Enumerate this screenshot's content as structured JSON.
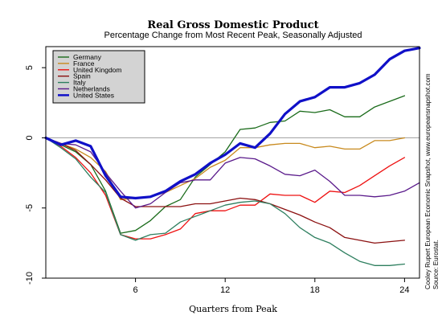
{
  "chart_data": {
    "type": "line",
    "title": "Real Gross Domestic Product",
    "subtitle": "Percentage Change from Most Recent Peak, Seasonally Adjusted",
    "xlabel": "Quarters from Peak",
    "ylabel": "",
    "xlim": [
      0,
      25
    ],
    "ylim": [
      -10,
      6.5
    ],
    "xticks": [
      6,
      12,
      18,
      24
    ],
    "yticks": [
      -10,
      -5,
      0,
      5
    ],
    "reference_line": 0,
    "legend_position": "top-left",
    "source": {
      "line1": "Cooley Rupert European Economic Snapshot, www.europeansnapshot.com",
      "line2": "Source: Eurostat."
    },
    "x": [
      0,
      1,
      2,
      3,
      4,
      5,
      6,
      7,
      8,
      9,
      10,
      11,
      12,
      13,
      14,
      15,
      16,
      17,
      18,
      19,
      20,
      21,
      22,
      23,
      24,
      25
    ],
    "series": [
      {
        "name": "Germany",
        "color": "#1a6b1a",
        "width": 1.3,
        "values": [
          0,
          -0.5,
          -1.0,
          -1.9,
          -3.8,
          -6.8,
          -6.6,
          -5.9,
          -4.9,
          -4.4,
          -2.8,
          -1.9,
          -1.0,
          0.6,
          0.7,
          1.1,
          1.2,
          1.9,
          1.8,
          2.0,
          1.5,
          1.5,
          2.2,
          2.6,
          3.0,
          null
        ]
      },
      {
        "name": "France",
        "color": "#c88a1e",
        "width": 1.3,
        "values": [
          0,
          -0.4,
          -0.8,
          -1.4,
          -2.4,
          -4.4,
          -4.3,
          -4.2,
          -3.9,
          -3.4,
          -2.9,
          -2.1,
          -1.6,
          -0.7,
          -0.7,
          -0.5,
          -0.4,
          -0.4,
          -0.7,
          -0.6,
          -0.8,
          -0.8,
          -0.2,
          -0.2,
          0.0,
          null
        ]
      },
      {
        "name": "United Kingdom",
        "color": "#ee1111",
        "width": 1.3,
        "values": [
          0,
          -0.6,
          -1.4,
          -2.5,
          -4.1,
          -6.9,
          -7.2,
          -7.2,
          -6.9,
          -6.5,
          -5.4,
          -5.2,
          -5.2,
          -4.8,
          -4.8,
          -4.0,
          -4.1,
          -4.1,
          -4.6,
          -3.8,
          -3.9,
          -3.4,
          -2.7,
          -2.0,
          -1.4,
          null
        ]
      },
      {
        "name": "Spain",
        "color": "#8b1010",
        "width": 1.3,
        "values": [
          0,
          -0.4,
          -0.9,
          -1.9,
          -3.0,
          -4.3,
          -4.9,
          -4.9,
          -4.9,
          -4.9,
          -4.7,
          -4.7,
          -4.5,
          -4.3,
          -4.4,
          -4.7,
          -5.1,
          -5.5,
          -6.0,
          -6.4,
          -7.1,
          -7.3,
          -7.5,
          -7.4,
          -7.3,
          null
        ]
      },
      {
        "name": "Italy",
        "color": "#2e7f5f",
        "width": 1.3,
        "values": [
          0,
          -0.7,
          -1.5,
          -2.8,
          -3.9,
          -6.9,
          -7.3,
          -6.9,
          -6.8,
          -6.0,
          -5.6,
          -5.2,
          -4.8,
          -4.6,
          -4.5,
          -4.7,
          -5.4,
          -6.4,
          -7.1,
          -7.5,
          -8.2,
          -8.8,
          -9.1,
          -9.1,
          -9.0,
          null
        ]
      },
      {
        "name": "Netherlands",
        "color": "#5a1a8b",
        "width": 1.3,
        "values": [
          0,
          -0.4,
          -0.5,
          -1.0,
          -2.5,
          -3.8,
          -5.0,
          -4.7,
          -3.9,
          -3.2,
          -3.0,
          -3.0,
          -1.8,
          -1.4,
          -1.5,
          -2.0,
          -2.6,
          -2.7,
          -2.3,
          -3.1,
          -4.1,
          -4.1,
          -4.2,
          -4.1,
          -3.8,
          -3.2
        ]
      },
      {
        "name": "United States",
        "color": "#1010c8",
        "width": 3.2,
        "values": [
          0,
          -0.5,
          -0.2,
          -0.6,
          -2.7,
          -4.2,
          -4.3,
          -4.2,
          -3.8,
          -3.1,
          -2.6,
          -1.8,
          -1.2,
          -0.4,
          -0.7,
          0.3,
          1.7,
          2.6,
          2.9,
          3.6,
          3.6,
          3.9,
          4.5,
          5.6,
          6.2,
          6.4
        ]
      }
    ]
  }
}
